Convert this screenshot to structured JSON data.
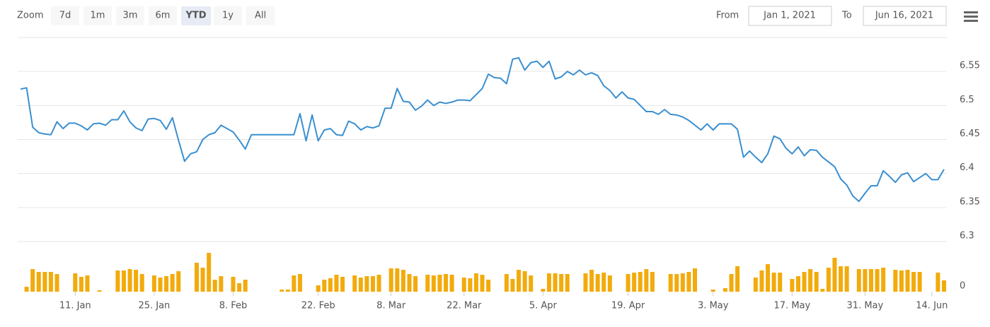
{
  "range_selector": {
    "zoom_label": "Zoom",
    "buttons": [
      "7d",
      "1m",
      "3m",
      "6m",
      "YTD",
      "1y",
      "All"
    ],
    "selected": 4,
    "from_label": "From",
    "from": "Jan 1, 2021",
    "to_label": "To",
    "to": "Jun 16, 2021"
  },
  "chart_data": {
    "type": "stock",
    "categories": [
      null,
      null,
      null,
      null,
      null,
      null,
      null,
      null,
      null,
      "11. Jan",
      null,
      null,
      null,
      null,
      null,
      null,
      null,
      null,
      null,
      null,
      null,
      null,
      "25. Jan",
      null,
      null,
      null,
      null,
      null,
      null,
      null,
      null,
      null,
      null,
      null,
      null,
      "8. Feb",
      null,
      null,
      null,
      null,
      null,
      null,
      null,
      null,
      null,
      null,
      null,
      null,
      null,
      "22. Feb",
      null,
      null,
      null,
      null,
      null,
      null,
      null,
      null,
      null,
      null,
      null,
      "8. Mar",
      null,
      null,
      null,
      null,
      null,
      null,
      null,
      null,
      null,
      null,
      null,
      "22. Mar",
      null,
      null,
      null,
      null,
      null,
      null,
      null,
      null,
      null,
      null,
      null,
      null,
      "5. Apr",
      null,
      null,
      null,
      null,
      null,
      null,
      null,
      null,
      null,
      null,
      null,
      null,
      null,
      "19. Apr",
      null,
      null,
      null,
      null,
      null,
      null,
      null,
      null,
      null,
      null,
      null,
      null,
      null,
      "3. May",
      null,
      null,
      null,
      null,
      null,
      null,
      null,
      null,
      null,
      null,
      null,
      null,
      "17. May",
      null,
      null,
      null,
      null,
      null,
      null,
      null,
      null,
      null,
      null,
      null,
      "31. May",
      null,
      null,
      null,
      null,
      null,
      null,
      null,
      null,
      null,
      null,
      "14. Jun",
      null,
      null
    ],
    "ylim": [
      6.3,
      6.6
    ],
    "yticks": [
      6.3,
      6.35,
      6.4,
      6.45,
      6.5,
      6.55
    ],
    "y2lim": [
      0,
      70
    ],
    "y2ticks": [
      0
    ],
    "grid": true,
    "series": [
      {
        "type": "line",
        "color": "#3a8fd0",
        "values": [
          6.524,
          6.526,
          6.468,
          6.46,
          6.458,
          6.457,
          6.476,
          6.466,
          6.474,
          6.474,
          6.47,
          6.464,
          6.473,
          6.474,
          6.471,
          6.479,
          6.479,
          6.492,
          6.476,
          6.467,
          6.463,
          6.48,
          6.481,
          6.478,
          6.465,
          6.482,
          6.449,
          6.418,
          6.429,
          6.432,
          6.45,
          6.457,
          6.46,
          6.471,
          6.466,
          6.461,
          6.449,
          6.436,
          6.457,
          6.457,
          6.457,
          6.457,
          6.457,
          6.457,
          6.457,
          6.457,
          6.488,
          6.448,
          6.486,
          6.448,
          6.464,
          6.466,
          6.457,
          6.456,
          6.477,
          6.473,
          6.464,
          6.469,
          6.467,
          6.47,
          6.496,
          6.496,
          6.525,
          6.506,
          6.505,
          6.493,
          6.499,
          6.508,
          6.5,
          6.505,
          6.503,
          6.505,
          6.508,
          6.508,
          6.507,
          6.516,
          6.525,
          6.546,
          6.541,
          6.54,
          6.532,
          6.568,
          6.57,
          6.552,
          6.563,
          6.565,
          6.556,
          6.565,
          6.539,
          6.542,
          6.55,
          6.545,
          6.552,
          6.545,
          6.548,
          6.544,
          6.529,
          6.522,
          6.511,
          6.52,
          6.511,
          6.509,
          6.5,
          6.491,
          6.491,
          6.487,
          6.494,
          6.487,
          6.486,
          6.483,
          6.478,
          6.471,
          6.464,
          6.473,
          6.464,
          6.473,
          6.473,
          6.473,
          6.465,
          6.424,
          6.433,
          6.424,
          6.416,
          6.429,
          6.455,
          6.451,
          6.437,
          6.429,
          6.439,
          6.426,
          6.435,
          6.434,
          6.424,
          6.417,
          6.41,
          6.392,
          6.383,
          6.367,
          6.359,
          6.371,
          6.382,
          6.382,
          6.404,
          6.396,
          6.387,
          6.398,
          6.401,
          6.388,
          6.394,
          6.4,
          6.391,
          6.391,
          6.406
        ]
      },
      {
        "type": "bar",
        "axis": "y2",
        "color": "#f2ab0c",
        "values": [
          0,
          7,
          32,
          28,
          28,
          28,
          25,
          0,
          0,
          26,
          21,
          23,
          0,
          2,
          0,
          0,
          30,
          30,
          32,
          31,
          25,
          0,
          23,
          20,
          22,
          25,
          29,
          0,
          0,
          41,
          34,
          55,
          17,
          22,
          0,
          21,
          12,
          17,
          0,
          0,
          0,
          0,
          0,
          3,
          3,
          23,
          25,
          0,
          0,
          9,
          17,
          19,
          24,
          21,
          0,
          23,
          20,
          22,
          22,
          24,
          0,
          33,
          33,
          31,
          25,
          22,
          0,
          24,
          23,
          24,
          25,
          24,
          0,
          20,
          19,
          26,
          24,
          17,
          0,
          0,
          25,
          18,
          31,
          29,
          23,
          0,
          4,
          26,
          26,
          25,
          25,
          0,
          0,
          26,
          31,
          25,
          27,
          23,
          0,
          0,
          25,
          27,
          28,
          32,
          28,
          0,
          0,
          25,
          25,
          26,
          28,
          33,
          0,
          0,
          3,
          0,
          5,
          25,
          36,
          0,
          0,
          20,
          30,
          39,
          27,
          27,
          0,
          18,
          22,
          28,
          32,
          28,
          4,
          34,
          48,
          36,
          36,
          0,
          32,
          32,
          32,
          32,
          34,
          0,
          31,
          30,
          31,
          28,
          28,
          0,
          0,
          27,
          16
        ]
      }
    ]
  }
}
